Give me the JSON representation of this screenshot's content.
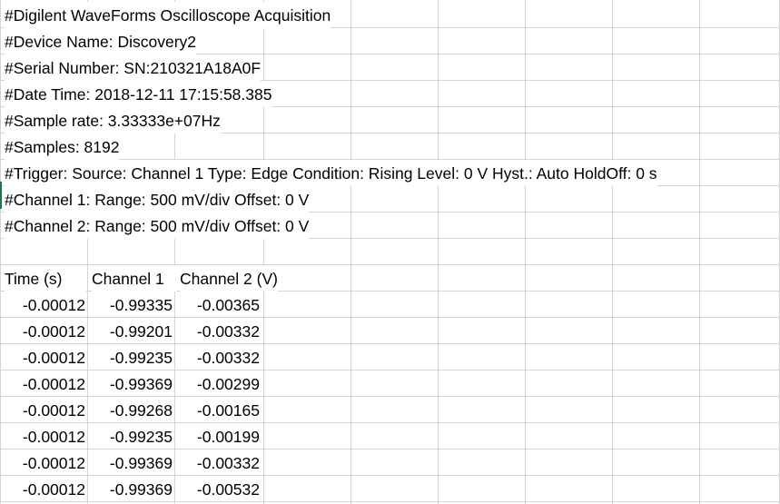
{
  "header_lines": [
    "#Digilent WaveForms Oscilloscope Acquisition",
    "#Device Name: Discovery2",
    "#Serial Number: SN:210321A18A0F",
    "#Date Time: 2018-12-11 17:15:58.385",
    "#Sample rate: 3.33333e+07Hz",
    "#Samples: 8192",
    "#Trigger: Source: Channel 1 Type: Edge Condition: Rising Level: 0 V Hyst.: Auto HoldOff: 0 s",
    "#Channel 1: Range: 500 mV/div Offset: 0 V",
    "#Channel 2: Range: 500 mV/div Offset: 0 V"
  ],
  "table": {
    "columns": [
      "Time (s)",
      "Channel 1",
      "Channel 2 (V)"
    ],
    "rows": [
      [
        "-0.00012",
        "-0.99335",
        "-0.00365"
      ],
      [
        "-0.00012",
        "-0.99201",
        "-0.00332"
      ],
      [
        "-0.00012",
        "-0.99235",
        "-0.00332"
      ],
      [
        "-0.00012",
        "-0.99369",
        "-0.00299"
      ],
      [
        "-0.00012",
        "-0.99268",
        "-0.00165"
      ],
      [
        "-0.00012",
        "-0.99235",
        "-0.00199"
      ],
      [
        "-0.00012",
        "-0.99369",
        "-0.00332"
      ],
      [
        "-0.00012",
        "-0.99369",
        "-0.00532"
      ]
    ]
  },
  "colors": {
    "gridline": "#d4d4d4",
    "text": "#000000",
    "background": "#ffffff",
    "accent": "#217346"
  }
}
